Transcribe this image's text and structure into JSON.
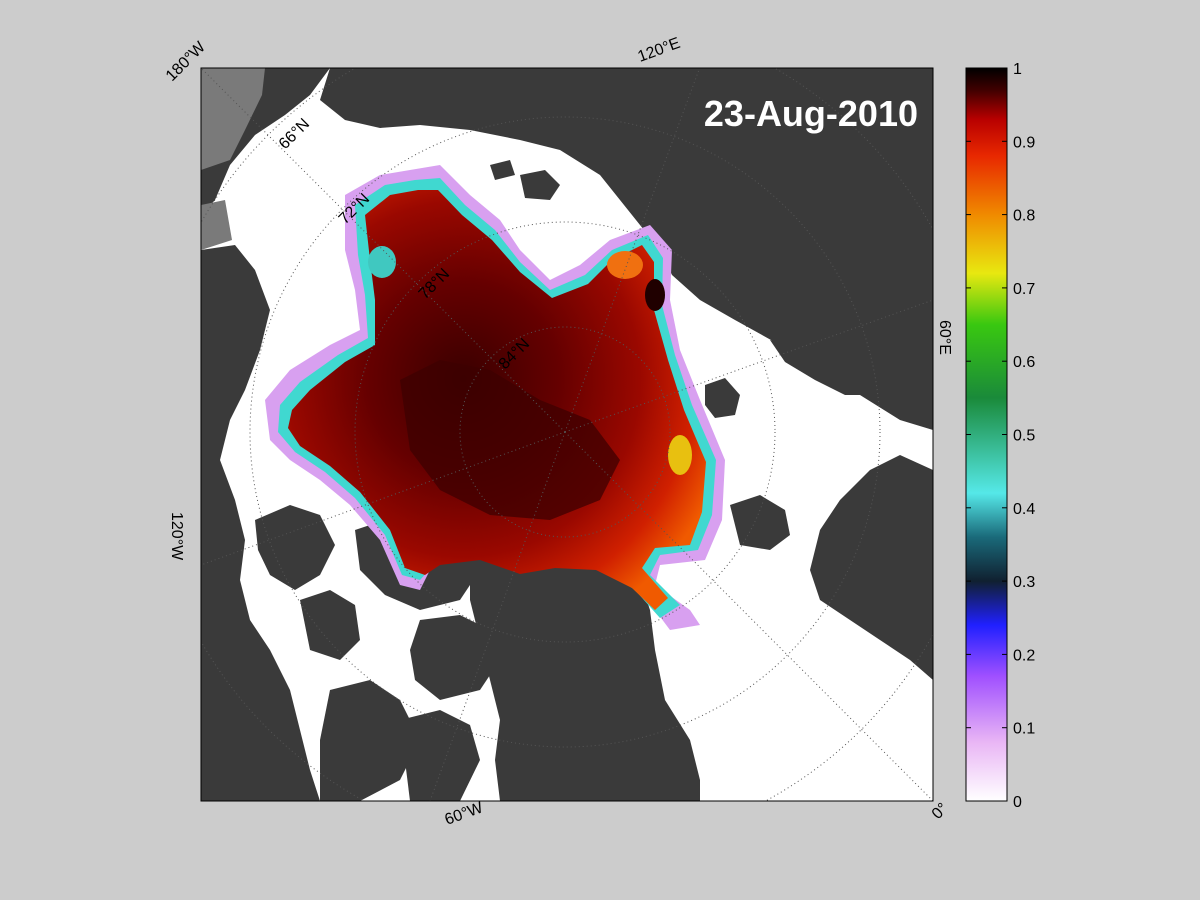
{
  "map": {
    "date_label": "23-Aug-2010",
    "lon_labels": {
      "w180": "180°W",
      "e120": "120°E",
      "e60": "60°E",
      "w120": "120°W",
      "w60": "60°W",
      "zero": "0°"
    },
    "lat_labels": {
      "n66": "66°N",
      "n72": "72°N",
      "n78": "78°N",
      "n84": "84°N"
    },
    "colors": {
      "figure_bg": "#cccccc",
      "ocean_open": "#ffffff",
      "land": "#3a3a3a",
      "land_outside": "#7a7a7a",
      "ice_high": "#8a0000"
    }
  },
  "colorbar": {
    "ticks": [
      "0",
      "0.1",
      "0.2",
      "0.3",
      "0.4",
      "0.5",
      "0.6",
      "0.7",
      "0.8",
      "0.9",
      "1"
    ],
    "stops": [
      "#ffffff",
      "#e9b6f5",
      "#a050ff",
      "#2020ff",
      "#102030",
      "#1a6a7a",
      "#55e8e8",
      "#1fa040",
      "#39c810",
      "#e8e810",
      "#f08a00",
      "#e82800",
      "#b80000",
      "#400000",
      "#000000"
    ]
  }
}
